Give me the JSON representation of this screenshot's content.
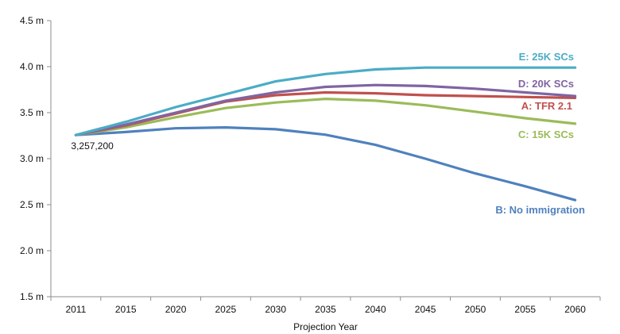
{
  "chart_data": {
    "type": "line",
    "title": "",
    "xlabel": "Projection Year",
    "ylabel": "",
    "x": [
      "2011",
      "2015",
      "2020",
      "2025",
      "2030",
      "2035",
      "2040",
      "2045",
      "2050",
      "2055",
      "2060"
    ],
    "y_ticks": [
      "1.5 m",
      "2.0 m",
      "2.5 m",
      "3.0 m",
      "3.5 m",
      "4.0 m",
      "4.5 m"
    ],
    "ylim": [
      1.5,
      4.5
    ],
    "grid": false,
    "legend": "inline labels at right end of lines",
    "series": [
      {
        "name": "E: 25K SCs",
        "color": "#4BACC6",
        "values": [
          3.257,
          3.4,
          3.56,
          3.7,
          3.84,
          3.92,
          3.97,
          3.99,
          3.99,
          3.99,
          3.99
        ]
      },
      {
        "name": "D: 20K SCs",
        "color": "#8064A2",
        "values": [
          3.257,
          3.37,
          3.5,
          3.63,
          3.72,
          3.78,
          3.8,
          3.79,
          3.76,
          3.72,
          3.68
        ]
      },
      {
        "name": "A: TFR 2.1",
        "color": "#C0504D",
        "values": [
          3.257,
          3.36,
          3.49,
          3.62,
          3.69,
          3.72,
          3.71,
          3.69,
          3.68,
          3.67,
          3.66
        ]
      },
      {
        "name": "C: 15K SCs",
        "color": "#9BBB59",
        "values": [
          3.257,
          3.34,
          3.45,
          3.55,
          3.61,
          3.65,
          3.63,
          3.58,
          3.51,
          3.44,
          3.38
        ]
      },
      {
        "name": "B: No immigration",
        "color": "#4F81BD",
        "values": [
          3.257,
          3.29,
          3.33,
          3.34,
          3.32,
          3.26,
          3.15,
          3.0,
          2.84,
          2.7,
          2.55
        ]
      }
    ],
    "annotations": [
      {
        "text": "3,257,200",
        "x": "2011",
        "y": 3.257
      }
    ]
  }
}
